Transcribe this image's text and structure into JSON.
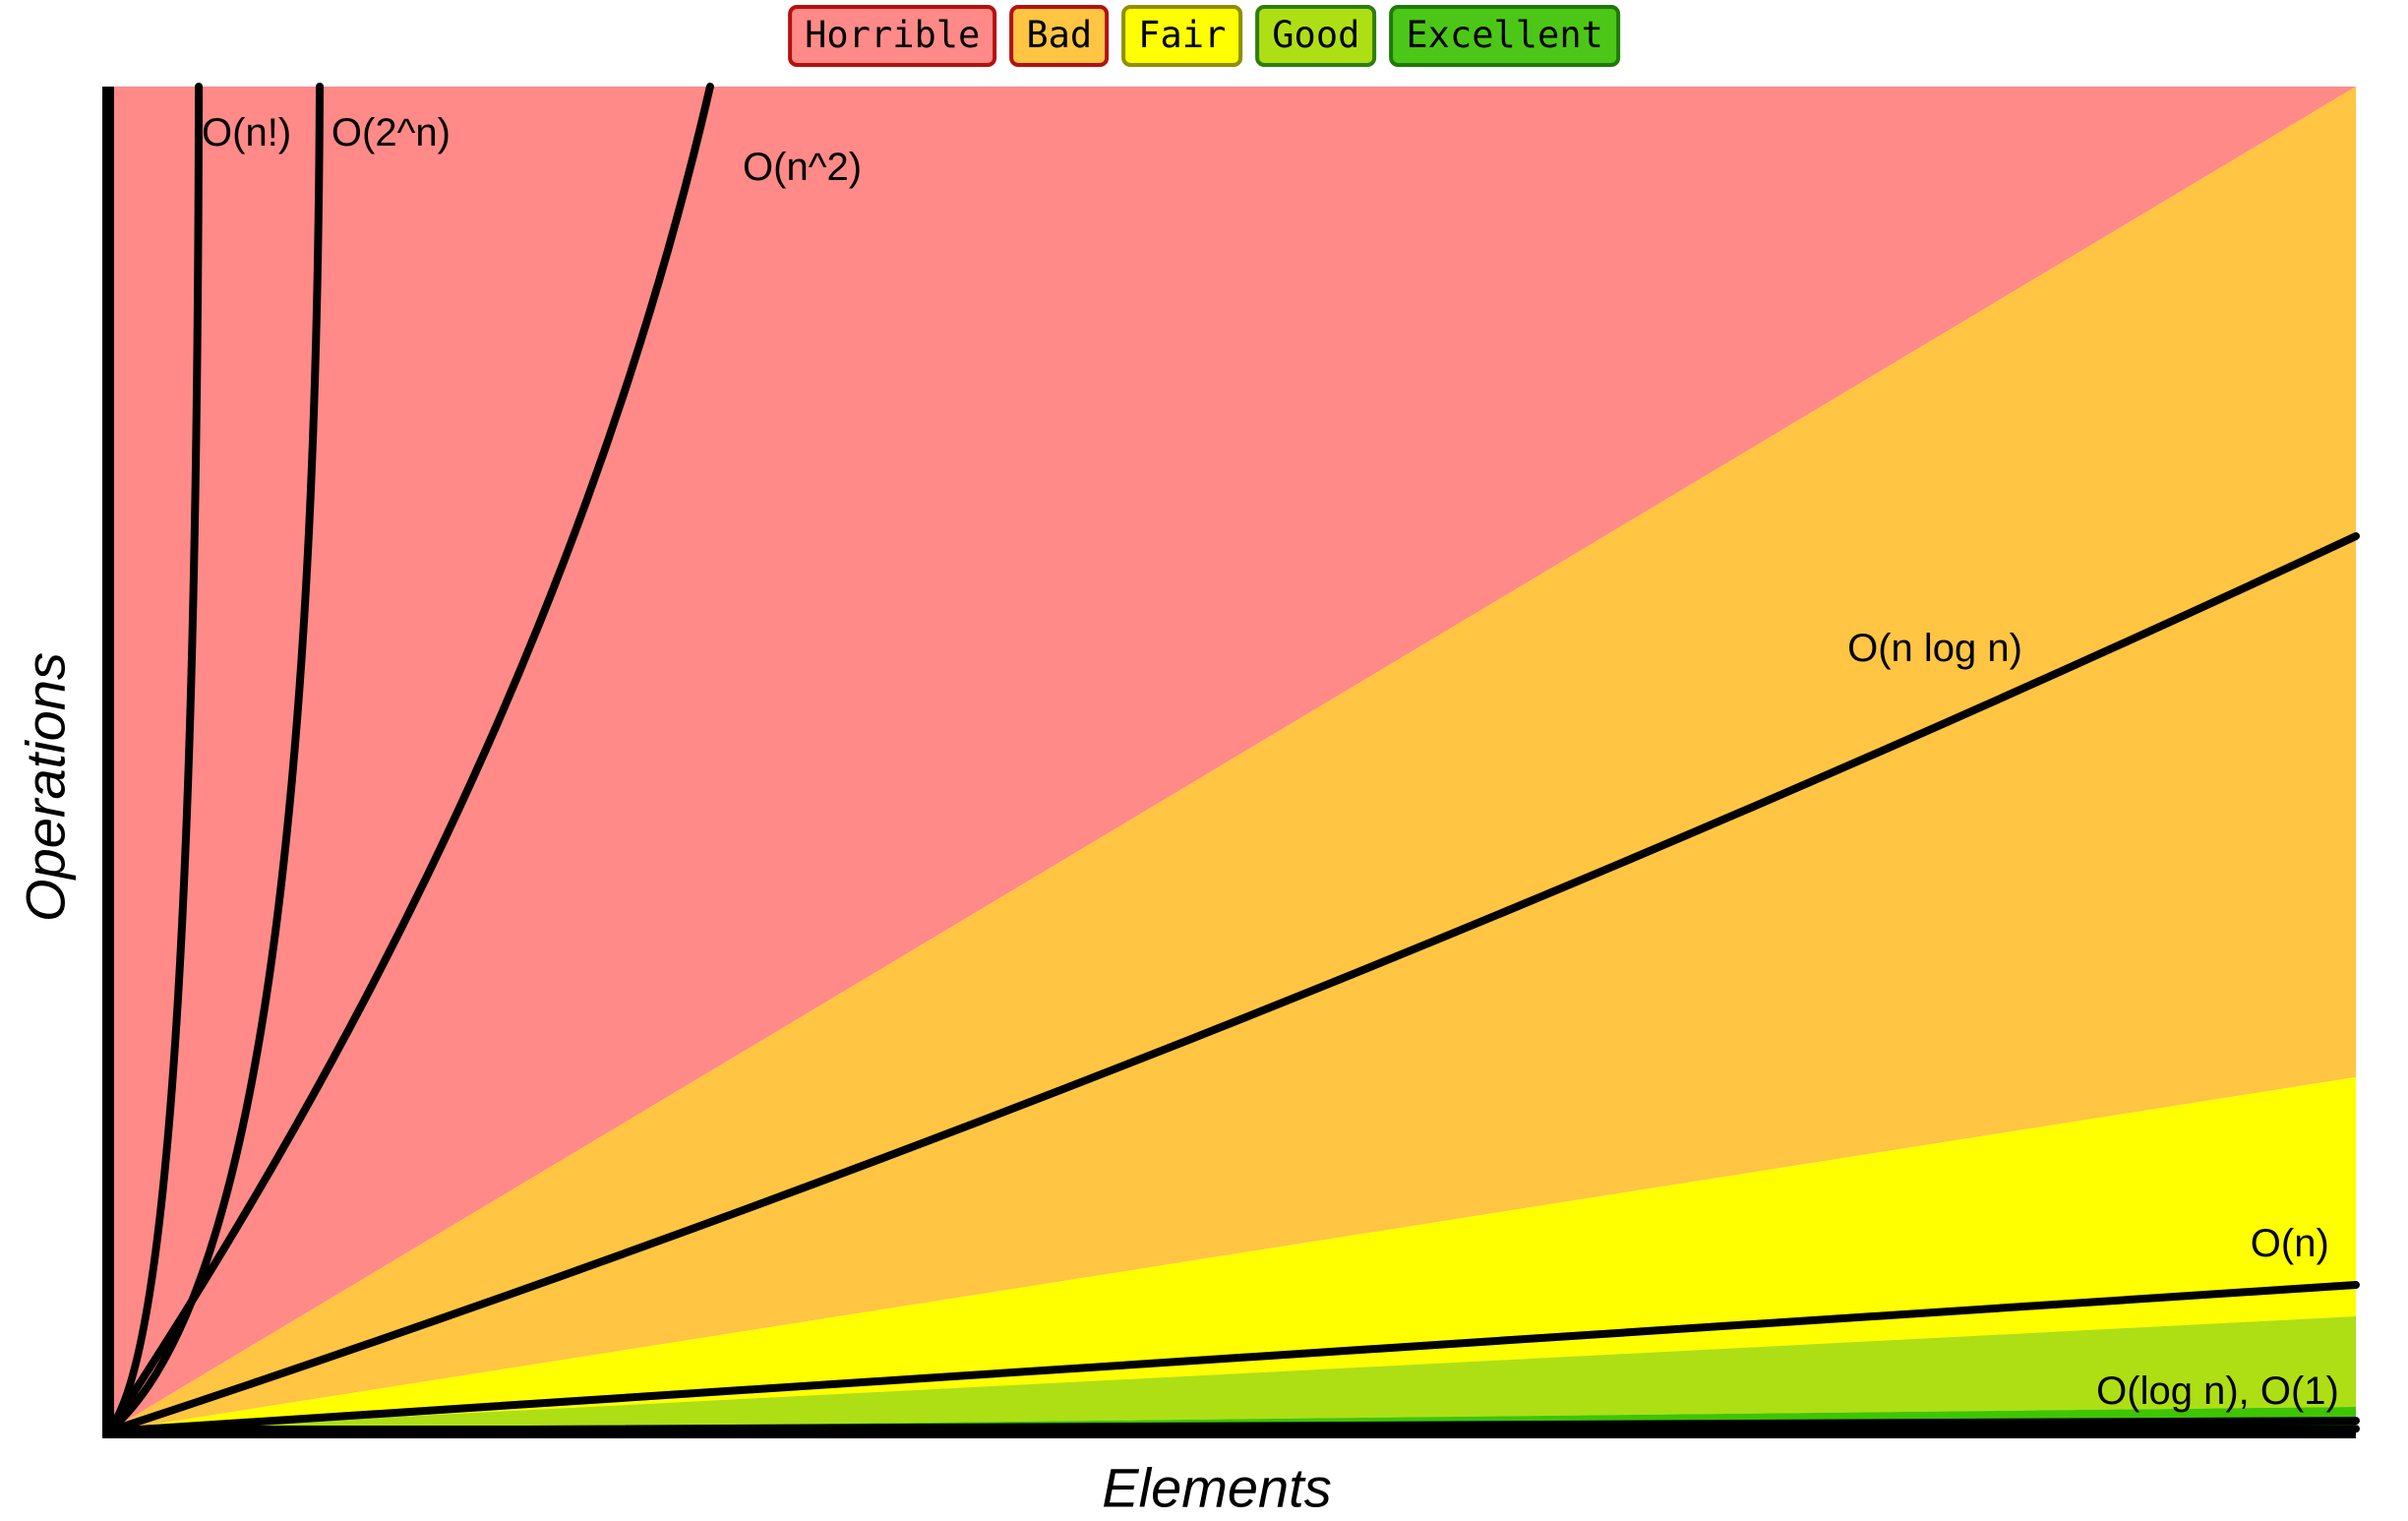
{
  "legend": {
    "items": [
      {
        "label": "Horrible",
        "bg": "#FF8A88",
        "border": "#B51010"
      },
      {
        "label": "Bad",
        "bg": "#FFC543",
        "border": "#B51010"
      },
      {
        "label": "Fair",
        "bg": "#FFFF00",
        "border": "#8F8F00"
      },
      {
        "label": "Good",
        "bg": "#AEDF14",
        "border": "#2F7D0C"
      },
      {
        "label": "Excellent",
        "bg": "#4CC717",
        "border": "#1E7A06"
      }
    ]
  },
  "axes": {
    "x_label": "Elements",
    "y_label": "Operations"
  },
  "chart_data": {
    "type": "area",
    "title": "",
    "xlabel": "Elements",
    "ylabel": "Operations",
    "axis_ticks": "none",
    "grid": false,
    "legend_position": "top-center",
    "legend_entries": [
      "Horrible",
      "Bad",
      "Fair",
      "Good",
      "Excellent"
    ],
    "regions": [
      {
        "name": "Horrible",
        "color": "#FF8A88",
        "vertices": [
          [
            0,
            0
          ],
          [
            0,
            1
          ],
          [
            1,
            1
          ]
        ]
      },
      {
        "name": "Bad",
        "color": "#FFC543",
        "vertices": [
          [
            0,
            0
          ],
          [
            1,
            1
          ],
          [
            1,
            0.2634
          ]
        ]
      },
      {
        "name": "Fair",
        "color": "#FFFF00",
        "vertices": [
          [
            0,
            0
          ],
          [
            1,
            0.2634
          ],
          [
            1,
            0.0856
          ]
        ]
      },
      {
        "name": "Good",
        "color": "#AEDF14",
        "vertices": [
          [
            0,
            0
          ],
          [
            1,
            0.0856
          ],
          [
            1,
            0.0183
          ]
        ]
      },
      {
        "name": "Excellent",
        "color": "#3EC503",
        "vertices": [
          [
            0,
            0
          ],
          [
            1,
            0.0183
          ],
          [
            1,
            0
          ]
        ]
      }
    ],
    "curves": [
      {
        "name": "O(n!)",
        "kind": "quadratic",
        "points": [
          [
            0,
            0
          ],
          [
            0.0394,
            0.0768
          ],
          [
            0.0403,
            1.0
          ]
        ]
      },
      {
        "name": "O(2^n)",
        "kind": "quadratic",
        "points": [
          [
            0,
            0
          ],
          [
            0.0919,
            0.128
          ],
          [
            0.0941,
            1.0
          ]
        ]
      },
      {
        "name": "O(n^2)",
        "kind": "quadratic",
        "points": [
          [
            0,
            0
          ],
          [
            0.1987,
            0.5011
          ],
          [
            0.2678,
            1.0
          ]
        ]
      },
      {
        "name": "O(n log n)",
        "kind": "quadratic",
        "points": [
          [
            0,
            0
          ],
          [
            0.4989,
            0.2743
          ],
          [
            1.0,
            0.6657
          ]
        ]
      },
      {
        "name": "O(n)",
        "kind": "line",
        "points": [
          [
            0,
            0
          ],
          [
            1.0,
            0.109
          ]
        ]
      },
      {
        "name": "O(log n)",
        "kind": "line",
        "points": [
          [
            0,
            0
          ],
          [
            1.0,
            0.008
          ]
        ]
      },
      {
        "name": "O(1)",
        "kind": "line",
        "points": [
          [
            0,
            0
          ],
          [
            1.0,
            0.002
          ]
        ]
      }
    ],
    "annotations": [
      {
        "text": "O(n!)",
        "anchor": "start",
        "fx": 0.0416,
        "fy": 0.9561
      },
      {
        "text": "O(2^n)",
        "anchor": "start",
        "fx": 0.0993,
        "fy": 0.9561
      },
      {
        "text": "O(n^2)",
        "anchor": "start",
        "fx": 0.2823,
        "fy": 0.9305
      },
      {
        "text": "O(n log n)",
        "anchor": "start",
        "fx": 0.7738,
        "fy": 0.5728
      },
      {
        "text": "O(n)",
        "anchor": "end",
        "fx": 0.9881,
        "fy": 0.1302
      },
      {
        "text": "O(log n), O(1)",
        "anchor": "end",
        "fx": 0.9925,
        "fy": 0.0205
      }
    ]
  }
}
